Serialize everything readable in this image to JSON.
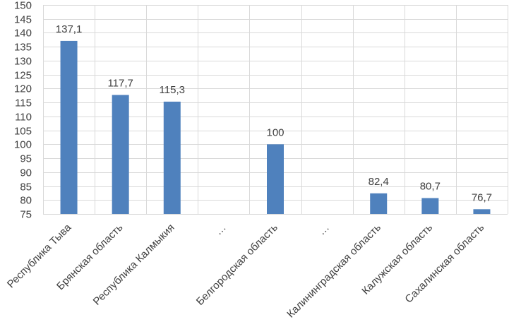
{
  "colors": {
    "bar": "#4f81bd",
    "grid": "#d9d9d9",
    "text": "#404040"
  },
  "chart_data": {
    "type": "bar",
    "title": "",
    "xlabel": "",
    "ylabel": "",
    "ylim": [
      75,
      150
    ],
    "ytick_step": 5,
    "grid": "horizontal and vertical",
    "legend": "none",
    "categories": [
      "Республика Тыва",
      "Брянская область",
      "Республика Калмыкия",
      "…",
      "Белгородская область",
      "…",
      "Калининградская область",
      "Калужская область",
      "Сахалинская область"
    ],
    "values": [
      137.1,
      117.7,
      115.3,
      null,
      100,
      null,
      82.4,
      80.7,
      76.7
    ],
    "data_labels": [
      "137,1",
      "117,7",
      "115,3",
      "",
      "100",
      "",
      "82,4",
      "80,7",
      "76,7"
    ]
  }
}
